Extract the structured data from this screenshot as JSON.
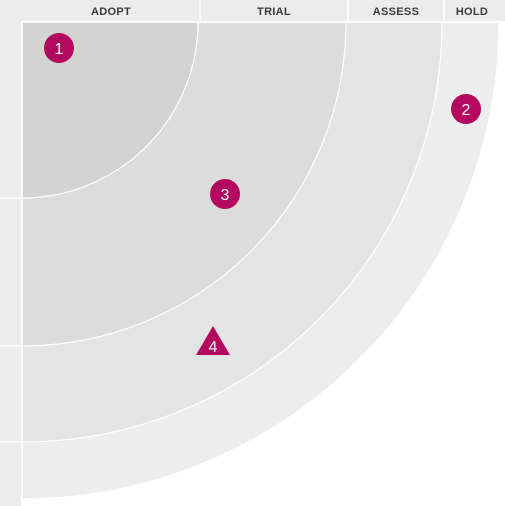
{
  "colors": {
    "ring_adopt": "#d3d3d2",
    "ring_trial": "#dcdcdc",
    "ring_assess": "#e4e4e4",
    "ring_hold": "#ededed",
    "ring_border": "#ffffff",
    "blip": "#b4075f",
    "blip_text": "#ffffff",
    "label_text": "#3a3a3a"
  },
  "rings": [
    {
      "id": "adopt",
      "label": "ADOPT"
    },
    {
      "id": "trial",
      "label": "TRIAL"
    },
    {
      "id": "assess",
      "label": "ASSESS"
    },
    {
      "id": "hold",
      "label": "HOLD"
    }
  ],
  "blips": [
    {
      "number": "1",
      "shape": "circle",
      "ring": "adopt"
    },
    {
      "number": "2",
      "shape": "circle",
      "ring": "hold"
    },
    {
      "number": "3",
      "shape": "circle",
      "ring": "trial"
    },
    {
      "number": "4",
      "shape": "triangle",
      "ring": "assess"
    }
  ]
}
